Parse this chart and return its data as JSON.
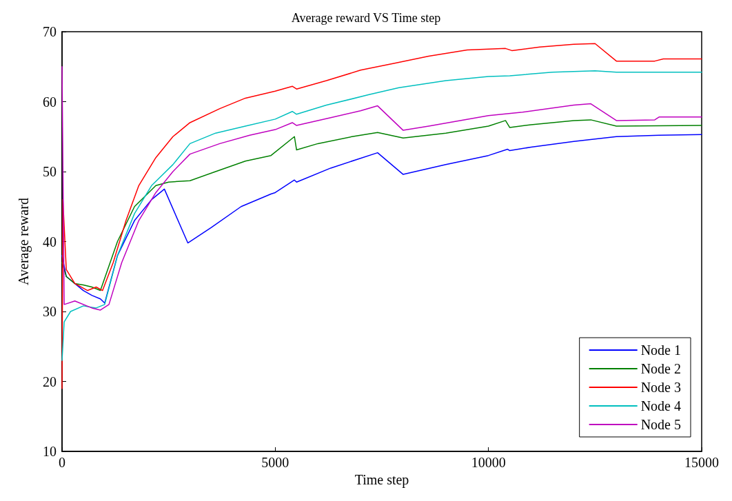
{
  "chart_data": {
    "type": "line",
    "title": "Average reward VS Time step",
    "xlabel": "Time step",
    "ylabel": "Average reward",
    "xlim": [
      0,
      15000
    ],
    "xticks": [
      0,
      5000,
      10000,
      15000
    ],
    "ylim": [
      10,
      70
    ],
    "yticks": [
      10,
      20,
      30,
      40,
      50,
      60,
      70
    ],
    "grid": false,
    "legend": "bottom right",
    "series": [
      {
        "name": "Node 1",
        "color": "#0000ff",
        "x": [
          0,
          100,
          300,
          500,
          700,
          900,
          1000,
          1300,
          1700,
          2100,
          2400,
          2950,
          3500,
          4200,
          4900,
          5000,
          5450,
          5500,
          6300,
          7400,
          8000,
          9000,
          10000,
          10450,
          10500,
          11000,
          12000,
          13000,
          14000,
          15000
        ],
        "values": [
          38,
          35,
          34,
          33,
          32.3,
          31.8,
          31.2,
          38,
          43,
          46,
          47.5,
          39.8,
          42,
          45,
          46.8,
          47,
          48.8,
          48.5,
          50.5,
          52.7,
          49.6,
          51,
          52.3,
          53.2,
          53,
          53.5,
          54.3,
          55,
          55.2,
          55.3
        ]
      },
      {
        "name": "Node 2",
        "color": "#008000",
        "x": [
          0,
          100,
          300,
          500,
          700,
          900,
          1300,
          1700,
          2200,
          2500,
          3000,
          3600,
          4300,
          4900,
          5450,
          5500,
          6000,
          6800,
          7400,
          8000,
          9000,
          10000,
          10400,
          10500,
          11000,
          12000,
          12400,
          13000,
          15000
        ],
        "values": [
          37,
          35,
          34,
          33.8,
          33.5,
          33,
          40,
          45,
          48,
          48.5,
          48.7,
          50,
          51.5,
          52.3,
          55,
          53.1,
          54,
          55,
          55.6,
          54.8,
          55.5,
          56.5,
          57.3,
          56.3,
          56.7,
          57.3,
          57.4,
          56.5,
          56.6
        ]
      },
      {
        "name": "Node 3",
        "color": "#ff0000",
        "x": [
          0,
          20,
          100,
          300,
          600,
          800,
          950,
          1200,
          1500,
          1800,
          2200,
          2600,
          3000,
          3700,
          4300,
          5000,
          5400,
          5500,
          6200,
          7000,
          7800,
          8600,
          9500,
          10400,
          10550,
          11200,
          12000,
          12500,
          13000,
          13900,
          14100,
          15000
        ],
        "values": [
          19,
          46,
          36,
          34,
          33,
          33.5,
          33,
          37,
          43,
          48,
          52,
          55,
          57,
          59,
          60.5,
          61.5,
          62.2,
          61.8,
          63,
          64.5,
          65.5,
          66.5,
          67.4,
          67.6,
          67.3,
          67.8,
          68.2,
          68.3,
          65.8,
          65.8,
          66.1,
          66.1
        ]
      },
      {
        "name": "Node 4",
        "color": "#00bfbf",
        "x": [
          0,
          50,
          200,
          500,
          800,
          1000,
          1300,
          1700,
          2100,
          2600,
          3000,
          3600,
          4300,
          5000,
          5400,
          5500,
          6200,
          7200,
          7900,
          9000,
          10000,
          10500,
          11500,
          12500,
          13000,
          15000
        ],
        "values": [
          23,
          28.5,
          30,
          30.8,
          30.5,
          31,
          38,
          44,
          48,
          51,
          54,
          55.5,
          56.5,
          57.5,
          58.6,
          58.2,
          59.5,
          61,
          62,
          63,
          63.6,
          63.7,
          64.2,
          64.4,
          64.2,
          64.2
        ]
      },
      {
        "name": "Node 5",
        "color": "#bf00bf",
        "x": [
          0,
          50,
          300,
          700,
          900,
          1100,
          1400,
          1800,
          2200,
          2600,
          3000,
          3700,
          4400,
          5000,
          5400,
          5500,
          6300,
          7000,
          7400,
          8000,
          8600,
          10000,
          10800,
          12000,
          12400,
          13000,
          13900,
          14000,
          15000
        ],
        "values": [
          65,
          31,
          31.5,
          30.5,
          30.2,
          31,
          37,
          43,
          47,
          50,
          52.5,
          54,
          55.2,
          56,
          57,
          56.6,
          57.7,
          58.7,
          59.4,
          55.9,
          56.5,
          58,
          58.5,
          59.5,
          59.7,
          57.3,
          57.4,
          57.8,
          57.8
        ]
      }
    ]
  }
}
